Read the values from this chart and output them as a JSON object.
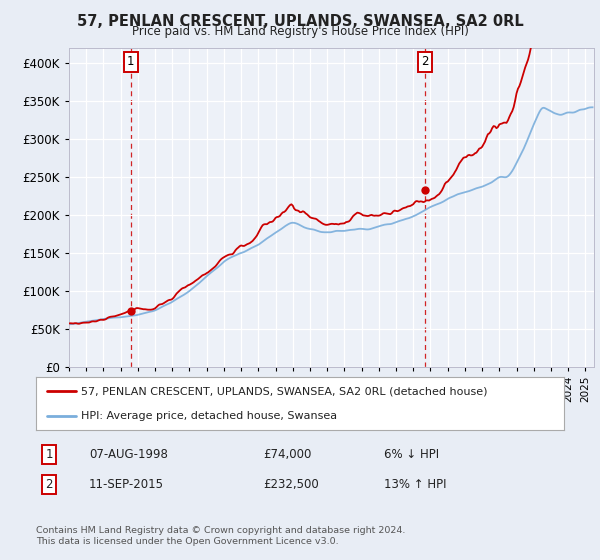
{
  "title": "57, PENLAN CRESCENT, UPLANDS, SWANSEA, SA2 0RL",
  "subtitle": "Price paid vs. HM Land Registry's House Price Index (HPI)",
  "legend_line1": "57, PENLAN CRESCENT, UPLANDS, SWANSEA, SA2 0RL (detached house)",
  "legend_line2": "HPI: Average price, detached house, Swansea",
  "annotation1_date": "07-AUG-1998",
  "annotation1_price": "£74,000",
  "annotation1_hpi": "6% ↓ HPI",
  "annotation2_date": "11-SEP-2015",
  "annotation2_price": "£232,500",
  "annotation2_hpi": "13% ↑ HPI",
  "footer": "Contains HM Land Registry data © Crown copyright and database right 2024.\nThis data is licensed under the Open Government Licence v3.0.",
  "sale1_year": 1998.58,
  "sale1_price": 74000,
  "sale2_year": 2015.7,
  "sale2_price": 232500,
  "property_color": "#cc0000",
  "hpi_color": "#7aaedc",
  "background_color": "#e8edf5",
  "plot_bg": "#edf1f8",
  "ylim": [
    0,
    420000
  ],
  "xlim_start": 1995,
  "xlim_end": 2025.5
}
